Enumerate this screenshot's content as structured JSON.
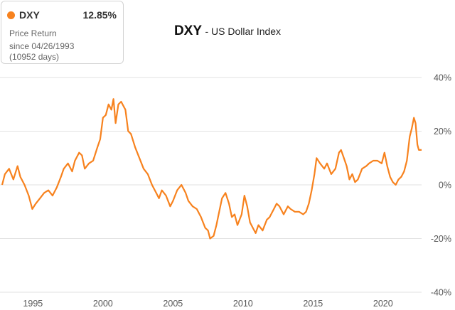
{
  "legend": {
    "symbol": "DXY",
    "return_value": "12.85%",
    "line1": "Price Return",
    "line2": "since 04/26/1993",
    "line3": "(10952 days)"
  },
  "colors": {
    "series": "#f7821e",
    "grid": "#e2e2e2",
    "text": "#555555"
  },
  "chart_data": {
    "type": "line",
    "title": "DXY",
    "subtitle": "- US Dollar Index",
    "xlabel": "",
    "ylabel": "",
    "x_tick_labels": [
      "1995",
      "2000",
      "2005",
      "2010",
      "2015",
      "2020"
    ],
    "y_tick_labels": [
      "40%",
      "20%",
      "0%",
      "-20%",
      "-40%"
    ],
    "xlim": [
      1992.8,
      2022.75
    ],
    "ylim": [
      -40,
      40
    ],
    "y_ticks": [
      40,
      20,
      0,
      -20,
      -40
    ],
    "x_ticks": [
      1995,
      2000,
      2005,
      2010,
      2015,
      2020
    ],
    "grid": true,
    "series": [
      {
        "name": "DXY",
        "points": [
          [
            1992.8,
            0
          ],
          [
            1993.0,
            4
          ],
          [
            1993.3,
            6
          ],
          [
            1993.6,
            2
          ],
          [
            1993.9,
            7
          ],
          [
            1994.1,
            3
          ],
          [
            1994.4,
            0
          ],
          [
            1994.7,
            -4
          ],
          [
            1994.95,
            -9
          ],
          [
            1995.2,
            -7
          ],
          [
            1995.5,
            -5
          ],
          [
            1995.8,
            -3
          ],
          [
            1996.1,
            -2
          ],
          [
            1996.4,
            -4
          ],
          [
            1996.7,
            -1
          ],
          [
            1997.0,
            3
          ],
          [
            1997.2,
            6
          ],
          [
            1997.5,
            8
          ],
          [
            1997.8,
            5
          ],
          [
            1998.0,
            9
          ],
          [
            1998.3,
            12
          ],
          [
            1998.5,
            11
          ],
          [
            1998.7,
            6
          ],
          [
            1999.0,
            8
          ],
          [
            1999.3,
            9
          ],
          [
            1999.6,
            14
          ],
          [
            1999.8,
            17
          ],
          [
            2000.0,
            25
          ],
          [
            2000.2,
            26
          ],
          [
            2000.4,
            30
          ],
          [
            2000.6,
            28
          ],
          [
            2000.75,
            32
          ],
          [
            2000.9,
            23
          ],
          [
            2001.1,
            30
          ],
          [
            2001.3,
            31
          ],
          [
            2001.6,
            28
          ],
          [
            2001.8,
            20
          ],
          [
            2002.0,
            19
          ],
          [
            2002.3,
            14
          ],
          [
            2002.6,
            10
          ],
          [
            2002.9,
            6
          ],
          [
            2003.2,
            4
          ],
          [
            2003.5,
            0
          ],
          [
            2003.8,
            -3
          ],
          [
            2004.0,
            -5
          ],
          [
            2004.2,
            -2
          ],
          [
            2004.5,
            -4
          ],
          [
            2004.8,
            -8
          ],
          [
            2005.0,
            -6
          ],
          [
            2005.3,
            -2
          ],
          [
            2005.6,
            0
          ],
          [
            2005.9,
            -3
          ],
          [
            2006.1,
            -6
          ],
          [
            2006.4,
            -8
          ],
          [
            2006.7,
            -9
          ],
          [
            2007.0,
            -12
          ],
          [
            2007.3,
            -16
          ],
          [
            2007.5,
            -17
          ],
          [
            2007.65,
            -20
          ],
          [
            2007.9,
            -19
          ],
          [
            2008.1,
            -15
          ],
          [
            2008.3,
            -10
          ],
          [
            2008.5,
            -5
          ],
          [
            2008.75,
            -3
          ],
          [
            2009.0,
            -7
          ],
          [
            2009.2,
            -12
          ],
          [
            2009.4,
            -11
          ],
          [
            2009.6,
            -15
          ],
          [
            2009.9,
            -11
          ],
          [
            2010.1,
            -4
          ],
          [
            2010.3,
            -8
          ],
          [
            2010.5,
            -14
          ],
          [
            2010.7,
            -16
          ],
          [
            2010.9,
            -18
          ],
          [
            2011.1,
            -15
          ],
          [
            2011.4,
            -17
          ],
          [
            2011.7,
            -13
          ],
          [
            2011.9,
            -12
          ],
          [
            2012.2,
            -9
          ],
          [
            2012.4,
            -7
          ],
          [
            2012.6,
            -8
          ],
          [
            2012.9,
            -11
          ],
          [
            2013.2,
            -8
          ],
          [
            2013.4,
            -9
          ],
          [
            2013.7,
            -10
          ],
          [
            2014.0,
            -10
          ],
          [
            2014.3,
            -11
          ],
          [
            2014.5,
            -10
          ],
          [
            2014.7,
            -7
          ],
          [
            2014.9,
            -2
          ],
          [
            2015.1,
            4
          ],
          [
            2015.25,
            10
          ],
          [
            2015.5,
            8
          ],
          [
            2015.8,
            6
          ],
          [
            2016.0,
            8
          ],
          [
            2016.3,
            4
          ],
          [
            2016.6,
            6
          ],
          [
            2016.85,
            12
          ],
          [
            2017.0,
            13
          ],
          [
            2017.2,
            10
          ],
          [
            2017.4,
            7
          ],
          [
            2017.6,
            2
          ],
          [
            2017.8,
            4
          ],
          [
            2018.0,
            1
          ],
          [
            2018.2,
            2
          ],
          [
            2018.5,
            6
          ],
          [
            2018.8,
            7
          ],
          [
            2019.0,
            8
          ],
          [
            2019.3,
            9
          ],
          [
            2019.6,
            9
          ],
          [
            2019.9,
            8
          ],
          [
            2020.1,
            12
          ],
          [
            2020.3,
            7
          ],
          [
            2020.5,
            3
          ],
          [
            2020.7,
            1
          ],
          [
            2020.9,
            0
          ],
          [
            2021.1,
            2
          ],
          [
            2021.3,
            3
          ],
          [
            2021.5,
            5
          ],
          [
            2021.7,
            9
          ],
          [
            2021.9,
            18
          ],
          [
            2022.05,
            21
          ],
          [
            2022.2,
            25
          ],
          [
            2022.32,
            23
          ],
          [
            2022.45,
            15
          ],
          [
            2022.55,
            13
          ],
          [
            2022.75,
            13
          ]
        ]
      }
    ]
  }
}
